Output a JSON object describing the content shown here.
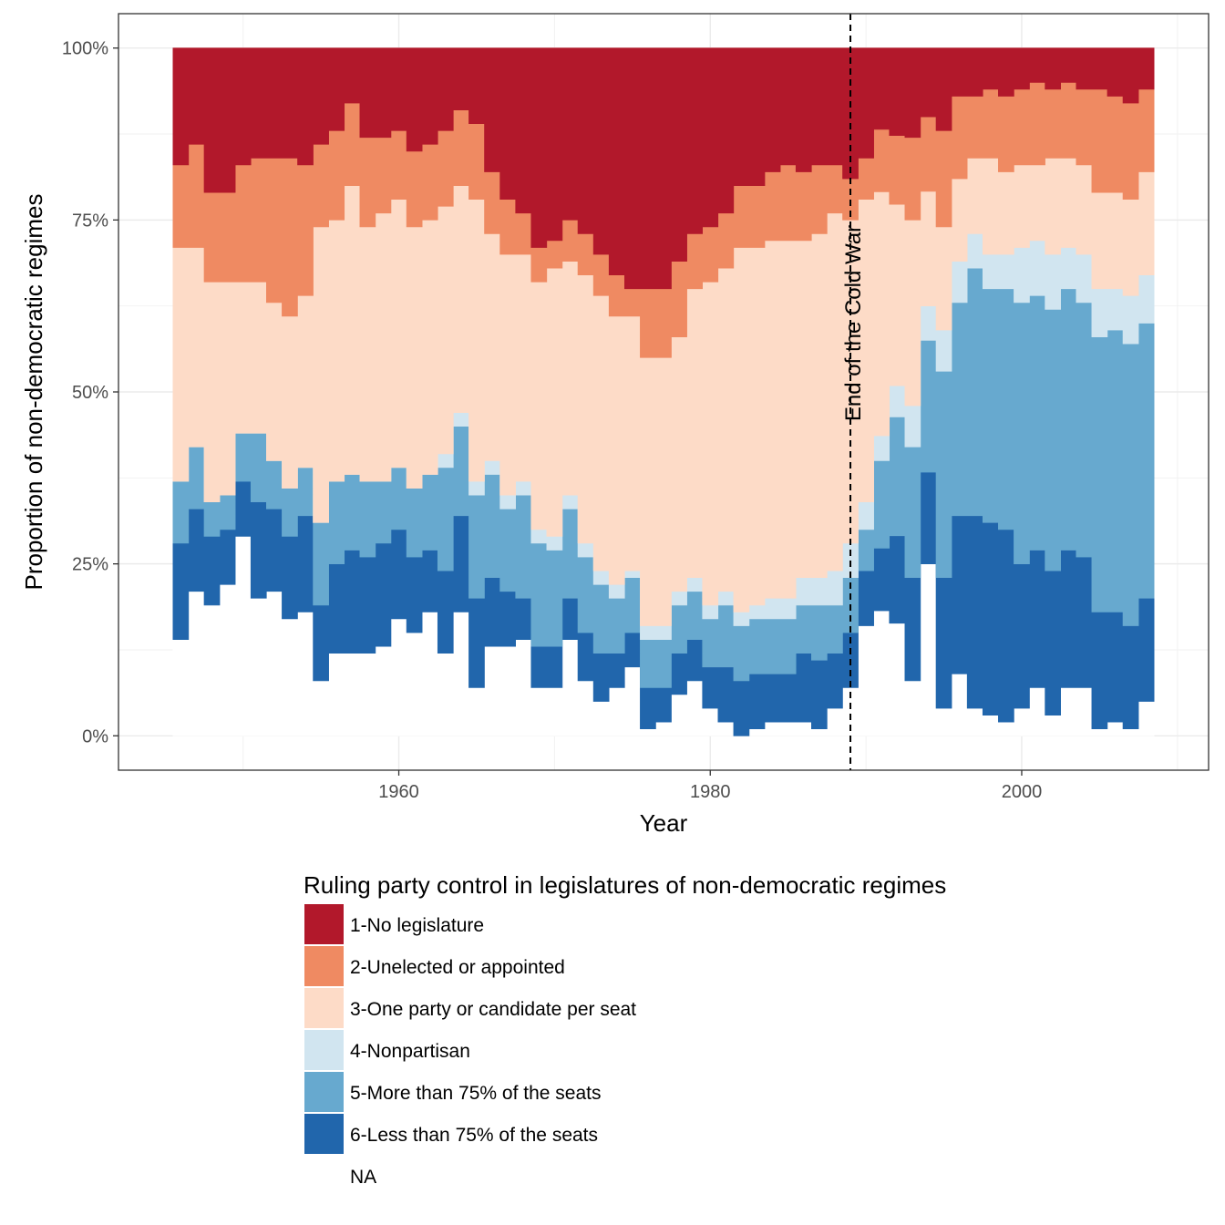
{
  "chart_data": {
    "type": "area",
    "stacked": true,
    "normalized": true,
    "step": true,
    "xlabel": "Year",
    "ylabel": "Proportion of non-democratic regimes",
    "xlim": [
      1942,
      2012
    ],
    "ylim": [
      -0.05,
      1.05
    ],
    "x_ticks": [
      1960,
      1980,
      2000
    ],
    "x_tick_labels": [
      "1960",
      "1980",
      "2000"
    ],
    "y_ticks": [
      0,
      0.25,
      0.5,
      0.75,
      1.0
    ],
    "y_tick_labels": [
      "0%",
      "25%",
      "50%",
      "75%",
      "100%"
    ],
    "grid": true,
    "legend_title": "Ruling party control in legislatures of non-democratic regimes",
    "legend_position": "bottom",
    "annotation": {
      "x": 1989,
      "label": "End of the Cold War",
      "style": "dashed vertical line"
    },
    "stack_order": "first series on top, NA at bottom",
    "x": [
      1946,
      1947,
      1948,
      1949,
      1950,
      1951,
      1952,
      1953,
      1954,
      1955,
      1956,
      1957,
      1958,
      1959,
      1960,
      1961,
      1962,
      1963,
      1964,
      1965,
      1966,
      1967,
      1968,
      1969,
      1970,
      1971,
      1972,
      1973,
      1974,
      1975,
      1976,
      1977,
      1978,
      1979,
      1980,
      1981,
      1982,
      1983,
      1984,
      1985,
      1986,
      1987,
      1988,
      1989,
      1990,
      1991,
      1992,
      1993,
      1994,
      1995,
      1996,
      1997,
      1998,
      1999,
      2000,
      2001,
      2002,
      2003,
      2004,
      2005,
      2006,
      2007,
      2008
    ],
    "series": [
      {
        "name": "1-No legislature",
        "color": "#b2182b",
        "values": [
          0.17,
          0.14,
          0.21,
          0.21,
          0.17,
          0.16,
          0.16,
          0.16,
          0.17,
          0.14,
          0.12,
          0.08,
          0.13,
          0.13,
          0.12,
          0.15,
          0.14,
          0.12,
          0.09,
          0.11,
          0.18,
          0.22,
          0.24,
          0.29,
          0.28,
          0.25,
          0.27,
          0.3,
          0.33,
          0.35,
          0.35,
          0.35,
          0.31,
          0.27,
          0.26,
          0.24,
          0.2,
          0.2,
          0.18,
          0.17,
          0.18,
          0.17,
          0.17,
          0.19,
          0.16,
          0.13,
          0.14,
          0.13,
          0.12,
          0.12,
          0.07,
          0.07,
          0.06,
          0.07,
          0.06,
          0.05,
          0.06,
          0.05,
          0.06,
          0.06,
          0.07,
          0.08,
          0.06
        ]
      },
      {
        "name": "2-Unelected or appointed",
        "color": "#ef8a62",
        "values": [
          0.12,
          0.15,
          0.13,
          0.13,
          0.17,
          0.18,
          0.21,
          0.23,
          0.19,
          0.12,
          0.13,
          0.12,
          0.13,
          0.11,
          0.1,
          0.11,
          0.11,
          0.11,
          0.11,
          0.11,
          0.09,
          0.08,
          0.06,
          0.05,
          0.04,
          0.06,
          0.06,
          0.06,
          0.06,
          0.04,
          0.1,
          0.1,
          0.11,
          0.08,
          0.08,
          0.08,
          0.09,
          0.09,
          0.1,
          0.11,
          0.1,
          0.1,
          0.07,
          0.06,
          0.06,
          0.1,
          0.11,
          0.12,
          0.13,
          0.14,
          0.12,
          0.09,
          0.1,
          0.11,
          0.11,
          0.12,
          0.1,
          0.11,
          0.11,
          0.15,
          0.14,
          0.14,
          0.12
        ]
      },
      {
        "name": "3-One party or candidate per seat",
        "color": "#fddbc7",
        "values": [
          0.34,
          0.29,
          0.32,
          0.31,
          0.22,
          0.22,
          0.23,
          0.25,
          0.25,
          0.43,
          0.38,
          0.42,
          0.37,
          0.39,
          0.39,
          0.38,
          0.37,
          0.36,
          0.33,
          0.41,
          0.33,
          0.35,
          0.33,
          0.36,
          0.39,
          0.34,
          0.39,
          0.4,
          0.39,
          0.37,
          0.39,
          0.39,
          0.37,
          0.42,
          0.47,
          0.47,
          0.53,
          0.52,
          0.52,
          0.52,
          0.49,
          0.5,
          0.52,
          0.47,
          0.44,
          0.39,
          0.29,
          0.27,
          0.2,
          0.15,
          0.12,
          0.11,
          0.14,
          0.12,
          0.12,
          0.11,
          0.14,
          0.13,
          0.13,
          0.14,
          0.14,
          0.14,
          0.15
        ]
      },
      {
        "name": "4-Nonpartisan",
        "color": "#d1e5f0",
        "values": [
          0,
          0,
          0,
          0,
          0,
          0,
          0,
          0,
          0,
          0,
          0,
          0,
          0,
          0,
          0,
          0,
          0,
          0.02,
          0.02,
          0.02,
          0.02,
          0.02,
          0.02,
          0.02,
          0.02,
          0.02,
          0.02,
          0.02,
          0.02,
          0.01,
          0.02,
          0.02,
          0.02,
          0.02,
          0.02,
          0.02,
          0.02,
          0.02,
          0.03,
          0.03,
          0.04,
          0.04,
          0.05,
          0.05,
          0.04,
          0.04,
          0.05,
          0.06,
          0.06,
          0.06,
          0.06,
          0.05,
          0.05,
          0.05,
          0.08,
          0.08,
          0.08,
          0.06,
          0.07,
          0.07,
          0.06,
          0.07,
          0.07
        ]
      },
      {
        "name": "5-More than 75% of the seats",
        "color": "#67a9cf",
        "values": [
          0.09,
          0.09,
          0.05,
          0.05,
          0.07,
          0.1,
          0.07,
          0.07,
          0.07,
          0.12,
          0.12,
          0.11,
          0.11,
          0.09,
          0.09,
          0.1,
          0.11,
          0.15,
          0.13,
          0.15,
          0.15,
          0.12,
          0.15,
          0.15,
          0.14,
          0.13,
          0.11,
          0.1,
          0.08,
          0.08,
          0.07,
          0.07,
          0.07,
          0.07,
          0.07,
          0.09,
          0.08,
          0.08,
          0.08,
          0.08,
          0.07,
          0.08,
          0.07,
          0.08,
          0.06,
          0.14,
          0.19,
          0.19,
          0.23,
          0.3,
          0.31,
          0.36,
          0.34,
          0.35,
          0.38,
          0.37,
          0.38,
          0.38,
          0.37,
          0.4,
          0.41,
          0.41,
          0.4
        ]
      },
      {
        "name": "6-Less than 75% of the seats",
        "color": "#2166ac",
        "values": [
          0.14,
          0.12,
          0.1,
          0.08,
          0.08,
          0.14,
          0.12,
          0.12,
          0.14,
          0.11,
          0.13,
          0.15,
          0.14,
          0.15,
          0.13,
          0.11,
          0.09,
          0.12,
          0.14,
          0.13,
          0.1,
          0.08,
          0.06,
          0.06,
          0.06,
          0.06,
          0.07,
          0.07,
          0.05,
          0.05,
          0.06,
          0.05,
          0.06,
          0.06,
          0.06,
          0.08,
          0.08,
          0.08,
          0.07,
          0.07,
          0.1,
          0.1,
          0.08,
          0.08,
          0.08,
          0.1,
          0.14,
          0.15,
          0.16,
          0.19,
          0.23,
          0.28,
          0.28,
          0.28,
          0.21,
          0.2,
          0.21,
          0.2,
          0.19,
          0.17,
          0.16,
          0.15,
          0.15
        ]
      },
      {
        "name": "NA",
        "color": "#ffffff",
        "values": [
          0.14,
          0.21,
          0.19,
          0.22,
          0.29,
          0.2,
          0.21,
          0.17,
          0.18,
          0.08,
          0.12,
          0.12,
          0.12,
          0.13,
          0.17,
          0.15,
          0.18,
          0.12,
          0.18,
          0.07,
          0.13,
          0.13,
          0.14,
          0.07,
          0.07,
          0.14,
          0.08,
          0.05,
          0.07,
          0.1,
          0.01,
          0.02,
          0.06,
          0.08,
          0.04,
          0.02,
          0.0,
          0.01,
          0.02,
          0.02,
          0.02,
          0.01,
          0.04,
          0.07,
          0.16,
          0.2,
          0.18,
          0.08,
          0.3,
          0.04,
          0.09,
          0.04,
          0.03,
          0.02,
          0.04,
          0.07,
          0.03,
          0.07,
          0.07,
          0.01,
          0.02,
          0.01,
          0.05
        ]
      }
    ]
  }
}
